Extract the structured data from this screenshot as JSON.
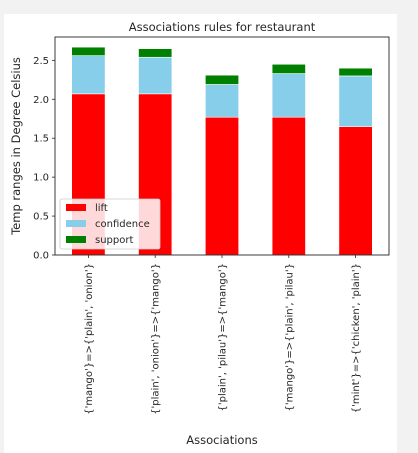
{
  "chart_data": {
    "type": "bar",
    "stacked": true,
    "title": "Associations rules for restaurant",
    "xlabel": "Associations",
    "ylabel": "Temp ranges in Degree Celsius",
    "ylim": [
      0,
      2.8
    ],
    "yticks": [
      "0.0",
      "0.5",
      "1.0",
      "1.5",
      "2.0",
      "2.5"
    ],
    "categories": [
      "{'mango'}=>{'plain', 'onion'}",
      "{'plain', 'onion'}=>{'mango'}",
      "{'plain', 'pilau'}=>{'mango'}",
      "{'mango'}=>{'plain', 'pilau'}",
      "{'mint'}=>{'chicken', 'plain'}"
    ],
    "series": [
      {
        "name": "lift",
        "color": "#ff0000",
        "values": [
          2.07,
          2.07,
          1.77,
          1.77,
          1.65
        ]
      },
      {
        "name": "confidence",
        "color": "#87ceeb",
        "values": [
          0.49,
          0.47,
          0.42,
          0.56,
          0.65
        ]
      },
      {
        "name": "support",
        "color": "#008000",
        "values": [
          0.11,
          0.11,
          0.12,
          0.12,
          0.1
        ]
      }
    ],
    "legend_position": "lower-left",
    "grid": false
  }
}
